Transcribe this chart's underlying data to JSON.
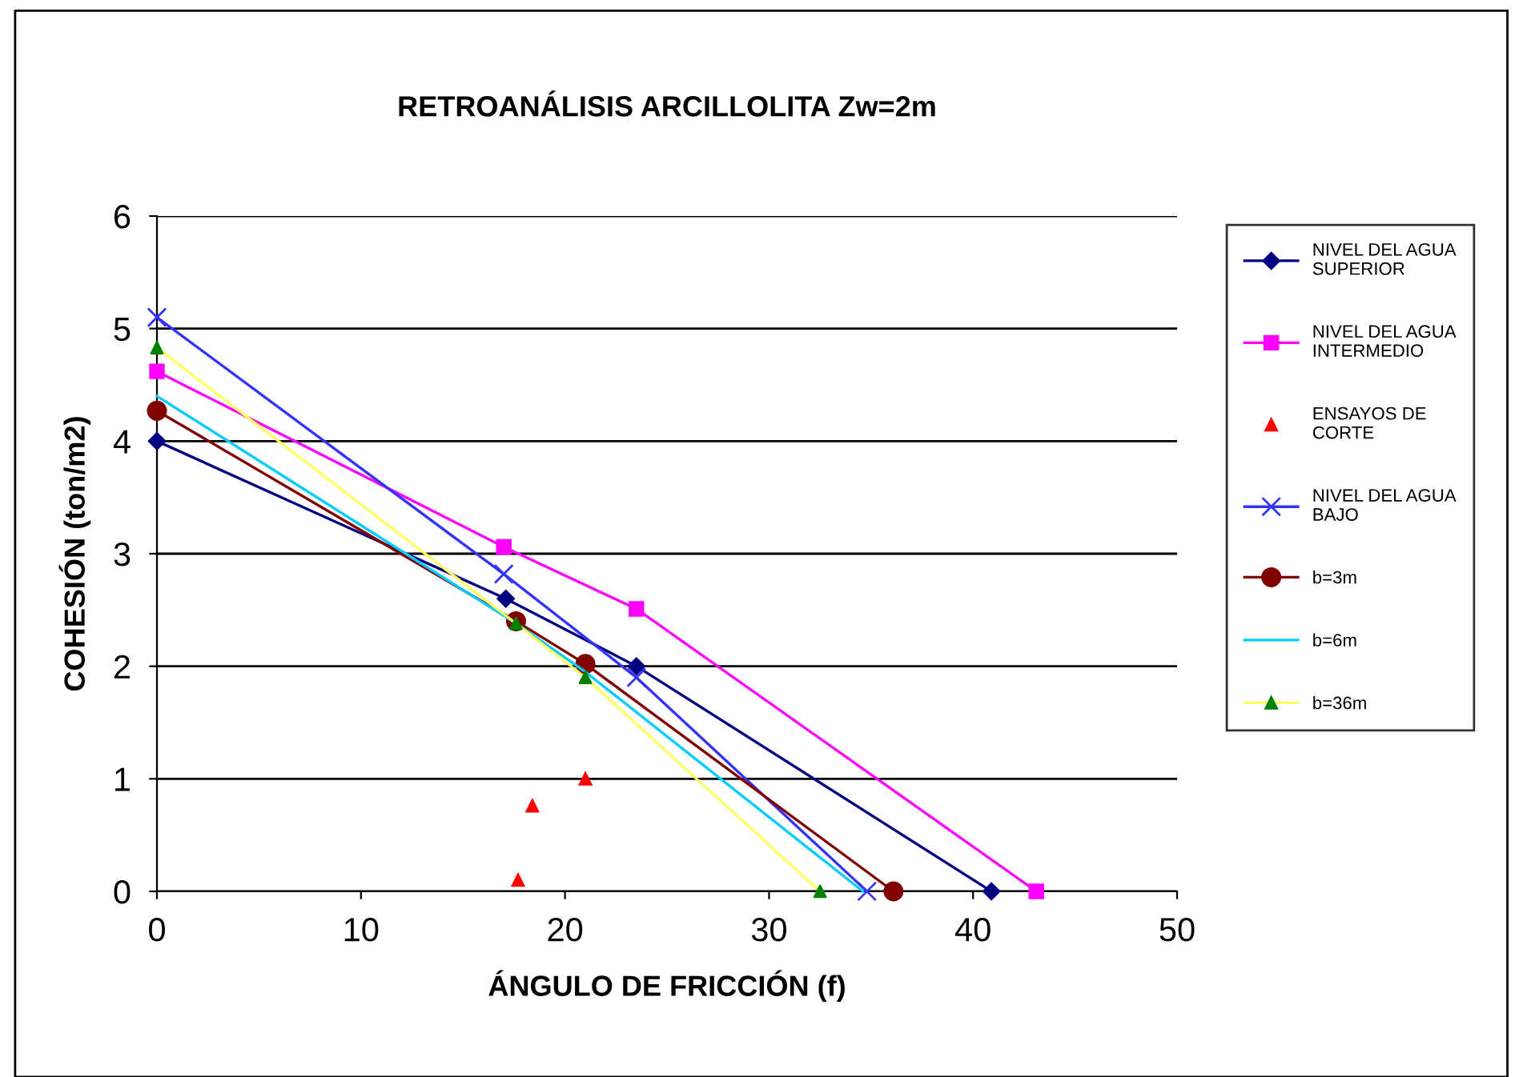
{
  "chart_data": {
    "type": "line",
    "title": "RETROANÁLISIS ARCILLOLITA Zw=2m",
    "xlabel": "ÁNGULO DE FRICCIÓN (f)",
    "ylabel": "COHESIÓN (ton/m2)",
    "xlim": [
      0,
      50
    ],
    "xticks": [
      0,
      10,
      20,
      30,
      40,
      50
    ],
    "ylim": [
      0,
      6
    ],
    "yticks": [
      0,
      1,
      2,
      3,
      4,
      5,
      6
    ],
    "grid": "y",
    "legend": "right",
    "line_style": "solid",
    "series": [
      {
        "name": "NIVEL DEL AGUA SUPERIOR",
        "color": "#000080",
        "marker": "diamond",
        "x": [
          0,
          17.1,
          23.5,
          40.9
        ],
        "values": [
          4.0,
          2.6,
          2.0,
          0
        ]
      },
      {
        "name": "NIVEL DEL AGUA INTERMEDIO",
        "color": "#ff00ff",
        "marker": "square",
        "x": [
          0,
          17.0,
          23.5,
          43.1
        ],
        "values": [
          4.62,
          3.06,
          2.51,
          0
        ]
      },
      {
        "name": "ENSAYOS DE CORTE",
        "type": "scatter",
        "color": "#ff0000",
        "marker": "triangle",
        "x": [
          17.7,
          18.4,
          21.0
        ],
        "values": [
          0.1,
          0.76,
          1.0
        ]
      },
      {
        "name": "NIVEL DEL AGUA BAJO",
        "color": "#3333ff",
        "marker": "cross",
        "x": [
          0,
          17.0,
          23.5,
          34.8
        ],
        "values": [
          5.1,
          2.82,
          1.9,
          0
        ]
      },
      {
        "name": "b=3m",
        "color": "#800000",
        "marker": "circle",
        "x": [
          0,
          17.6,
          21.0,
          36.1
        ],
        "values": [
          4.27,
          2.4,
          2.02,
          0
        ]
      },
      {
        "name": "b=6m",
        "color": "#00ccff",
        "marker": "none",
        "x": [
          0,
          17.6,
          21.0,
          34.6
        ],
        "values": [
          4.4,
          2.38,
          1.95,
          0
        ]
      },
      {
        "name": "b=36m",
        "color": "#ffff66",
        "colors": [
          "#008000",
          "#008000",
          "#008000",
          "#008000"
        ],
        "marker": "triangle",
        "x": [
          0,
          17.6,
          21.0,
          32.5
        ],
        "values": [
          4.83,
          2.38,
          1.9,
          0
        ]
      }
    ]
  }
}
